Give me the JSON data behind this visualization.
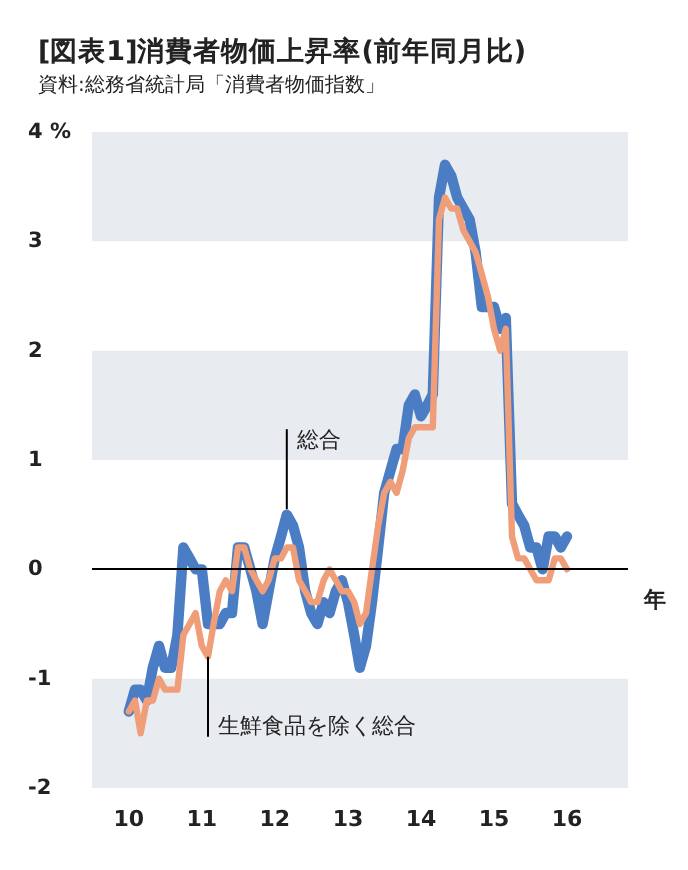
{
  "chart_data": {
    "type": "line",
    "title": "[図表1]消費者物価上昇率(前年同月比)",
    "subtitle": "資料:総務省統計局「消費者物価指数」",
    "xlabel": "年",
    "x": [
      "2010-01",
      "2010-02",
      "2010-03",
      "2010-04",
      "2010-05",
      "2010-06",
      "2010-07",
      "2010-08",
      "2010-09",
      "2010-10",
      "2010-11",
      "2010-12",
      "2011-01",
      "2011-02",
      "2011-03",
      "2011-04",
      "2011-05",
      "2011-06",
      "2011-07",
      "2011-08",
      "2011-09",
      "2011-10",
      "2011-11",
      "2011-12",
      "2012-01",
      "2012-02",
      "2012-03",
      "2012-04",
      "2012-05",
      "2012-06",
      "2012-07",
      "2012-08",
      "2012-09",
      "2012-10",
      "2012-11",
      "2012-12",
      "2013-01",
      "2013-02",
      "2013-03",
      "2013-04",
      "2013-05",
      "2013-06",
      "2013-07",
      "2013-08",
      "2013-09",
      "2013-10",
      "2013-11",
      "2013-12",
      "2014-01",
      "2014-02",
      "2014-03",
      "2014-04",
      "2014-05",
      "2014-06",
      "2014-07",
      "2014-08",
      "2014-09",
      "2014-10",
      "2014-11",
      "2014-12",
      "2015-01",
      "2015-02",
      "2015-03",
      "2015-04",
      "2015-05",
      "2015-06",
      "2015-07",
      "2015-08",
      "2015-09",
      "2015-10",
      "2015-11",
      "2015-12",
      "2016-01"
    ],
    "series": [
      {
        "color": "#4a7dc4",
        "values": [
          -1.3,
          -1.1,
          -1.1,
          -1.2,
          -0.9,
          -0.7,
          -0.9,
          -0.9,
          -0.6,
          0.2,
          0.1,
          0.0,
          0.0,
          -0.5,
          -0.5,
          -0.5,
          -0.4,
          -0.4,
          0.2,
          0.2,
          0.0,
          -0.2,
          -0.5,
          -0.2,
          0.1,
          0.3,
          0.5,
          0.4,
          0.2,
          -0.2,
          -0.4,
          -0.5,
          -0.3,
          -0.4,
          -0.2,
          -0.1,
          -0.3,
          -0.6,
          -0.9,
          -0.7,
          -0.3,
          0.2,
          0.7,
          0.9,
          1.1,
          1.1,
          1.5,
          1.6,
          1.4,
          1.5,
          1.6,
          3.4,
          3.7,
          3.6,
          3.4,
          3.3,
          3.2,
          2.9,
          2.4,
          2.4,
          2.4,
          2.2,
          2.3,
          0.6,
          0.5,
          0.4,
          0.2,
          0.2,
          0.0,
          0.3,
          0.3,
          0.2,
          0.3
        ]
      },
      {
        "color": "#f09e7a",
        "values": [
          -1.3,
          -1.2,
          -1.5,
          -1.2,
          -1.2,
          -1.0,
          -1.1,
          -1.1,
          -1.1,
          -0.6,
          -0.5,
          -0.4,
          -0.7,
          -0.8,
          -0.5,
          -0.2,
          -0.1,
          -0.2,
          0.2,
          0.2,
          0.0,
          -0.1,
          -0.2,
          -0.1,
          0.1,
          0.1,
          0.2,
          0.2,
          -0.1,
          -0.2,
          -0.3,
          -0.3,
          -0.1,
          0.0,
          -0.1,
          -0.2,
          -0.2,
          -0.3,
          -0.5,
          -0.4,
          0.0,
          0.4,
          0.7,
          0.8,
          0.7,
          0.9,
          1.2,
          1.3,
          1.3,
          1.3,
          1.3,
          3.2,
          3.4,
          3.3,
          3.3,
          3.1,
          3.0,
          2.9,
          2.7,
          2.5,
          2.2,
          2.0,
          2.2,
          0.3,
          0.1,
          0.1,
          0.0,
          -0.1,
          -0.1,
          -0.1,
          0.1,
          0.1,
          0.0
        ]
      }
    ],
    "xlim": [
      "2009-07",
      "2016-11"
    ],
    "xticks": [
      {
        "value": "2010-01",
        "label": "10"
      },
      {
        "value": "2011-01",
        "label": "11"
      },
      {
        "value": "2012-01",
        "label": "12"
      },
      {
        "value": "2013-01",
        "label": "13"
      },
      {
        "value": "2014-01",
        "label": "14"
      },
      {
        "value": "2015-01",
        "label": "15"
      },
      {
        "value": "2016-01",
        "label": "16"
      }
    ],
    "ylim": [
      -2,
      4
    ],
    "yticks": [
      -2,
      -1,
      0,
      1,
      2,
      3,
      {
        "value": 4,
        "label": "4 %"
      }
    ],
    "bands": [
      {
        "axis": "y",
        "from": -2,
        "to": -1,
        "color": "#e8ebef"
      },
      {
        "axis": "y",
        "from": 1,
        "to": 2,
        "color": "#e8ebef"
      },
      {
        "axis": "y",
        "from": 3,
        "to": 4,
        "color": "#e8ebef"
      }
    ],
    "marker": "none",
    "line_style": "solid",
    "ref_lines": [
      {
        "axis": "y",
        "value": 0,
        "color": "#000000"
      }
    ],
    "annotations": [
      {
        "text": "総合",
        "x": "2012-03",
        "y": 0.55
      },
      {
        "text": "生鮮食品を除く総合",
        "x": "2011-02",
        "y": -0.8
      }
    ]
  }
}
